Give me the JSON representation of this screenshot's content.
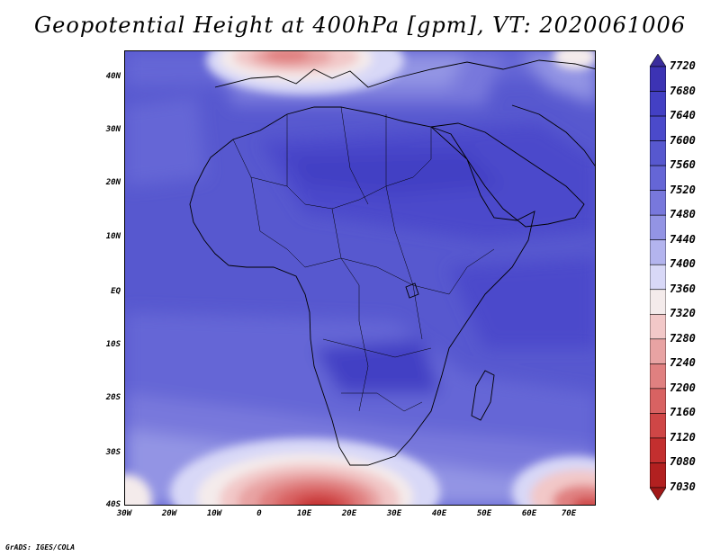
{
  "title": "Geopotential Height at 400hPa [gpm], VT: 2020061006",
  "credit": "GrADS: IGES/COLA",
  "map": {
    "field": "Geopotential Height",
    "level": "400hPa",
    "units": "gpm",
    "valid_time": "2020061006",
    "region": "Africa",
    "lat_labels": [
      "40N",
      "30N",
      "20N",
      "10N",
      "EQ",
      "10S",
      "20S",
      "30S",
      "40S"
    ],
    "lon_labels": [
      "30W",
      "20W",
      "10W",
      "0",
      "10E",
      "20E",
      "30E",
      "40E",
      "50E",
      "60E",
      "70E"
    ]
  },
  "colorbar": {
    "levels": [
      "7720",
      "7680",
      "7640",
      "7600",
      "7560",
      "7520",
      "7480",
      "7440",
      "7400",
      "7360",
      "7320",
      "7280",
      "7240",
      "7200",
      "7160",
      "7120",
      "7080",
      "7030"
    ],
    "colors": [
      "#3a2d9c",
      "#3c33b4",
      "#4340c4",
      "#4b4acb",
      "#5758cf",
      "#6566d6",
      "#7878dc",
      "#9394e4",
      "#b3b4ee",
      "#d8d8f7",
      "#f4ebeb",
      "#f2c8c8",
      "#e8a3a3",
      "#e08080",
      "#d86262",
      "#cf4646",
      "#c32f2f",
      "#b22020",
      "#a01818"
    ]
  }
}
